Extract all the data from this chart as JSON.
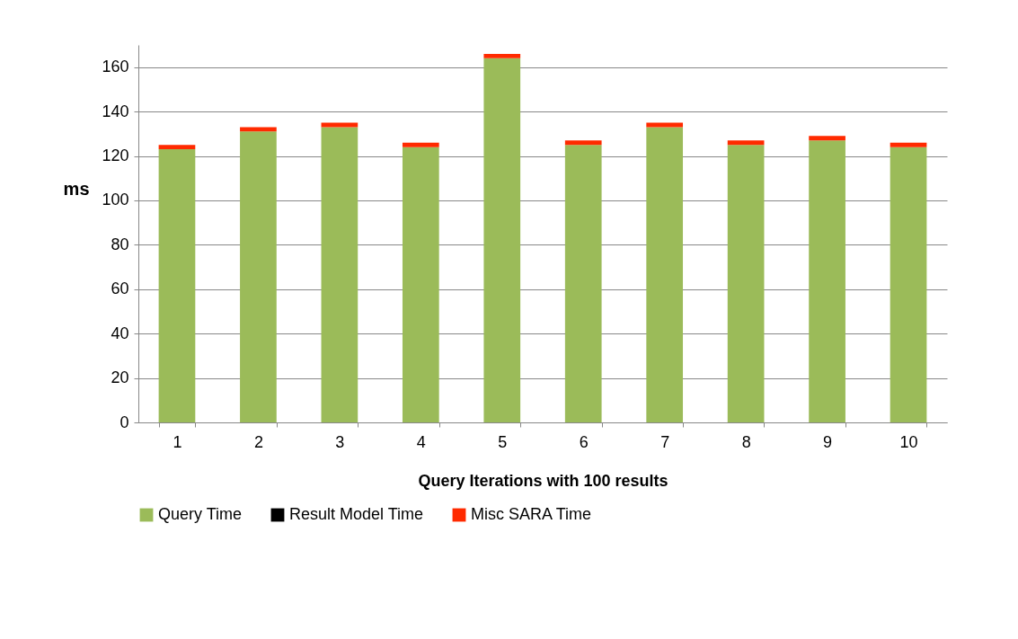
{
  "chart_data": {
    "type": "bar",
    "stacked": true,
    "xlabel": "Query Iterations with 100 results",
    "ylabel": "ms",
    "categories": [
      "1",
      "2",
      "3",
      "4",
      "5",
      "6",
      "7",
      "8",
      "9",
      "10"
    ],
    "series": [
      {
        "name": "Query Time",
        "color": "#9bbb59",
        "values": [
          123,
          131,
          133,
          124,
          164,
          125,
          133,
          125,
          127,
          124
        ]
      },
      {
        "name": "Result Model Time",
        "color": "#000000",
        "values": [
          0,
          0,
          0,
          0,
          0,
          0,
          0,
          0,
          0,
          0
        ]
      },
      {
        "name": "Misc SARA Time",
        "color": "#ff2a00",
        "values": [
          2,
          2,
          2,
          2,
          2,
          2,
          2,
          2,
          2,
          2
        ]
      }
    ],
    "ylim": [
      0,
      170
    ],
    "yticks": [
      0,
      20,
      40,
      60,
      80,
      100,
      120,
      140,
      160
    ],
    "grid": "y",
    "legend": "bottom"
  }
}
